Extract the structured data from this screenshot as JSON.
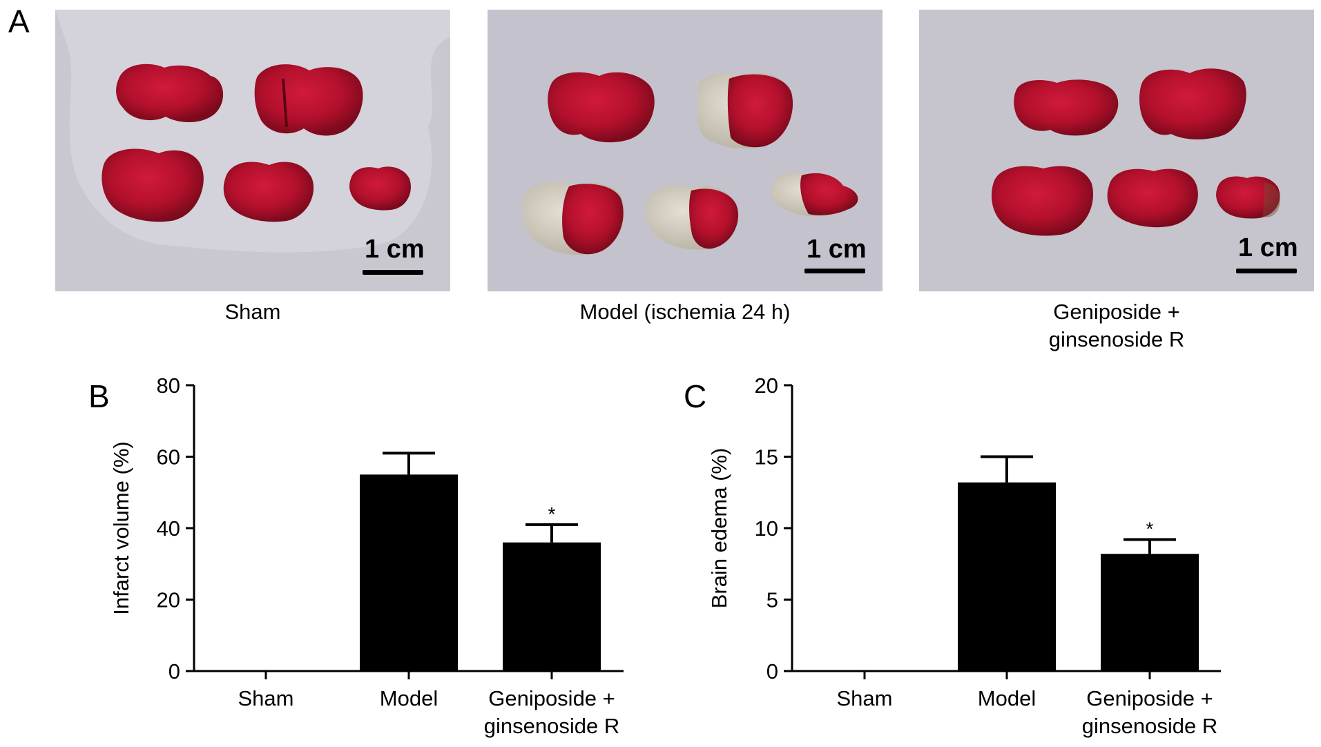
{
  "panel_a": {
    "letter": "A",
    "photos": [
      {
        "caption_lines": [
          "Sham"
        ],
        "scale_label": "1 cm"
      },
      {
        "caption_lines": [
          "Model (ischemia 24 h)"
        ],
        "scale_label": "1 cm"
      },
      {
        "caption_lines": [
          "Geniposide +",
          "ginsenoside R"
        ],
        "scale_label": "1 cm"
      }
    ]
  },
  "chart_data": [
    {
      "panel": "B",
      "type": "bar",
      "categories": [
        [
          "Sham"
        ],
        [
          "Model"
        ],
        [
          "Geniposide +",
          "ginsenoside R"
        ]
      ],
      "values": [
        0,
        55,
        36
      ],
      "error": [
        0,
        6,
        5
      ],
      "significance": [
        "",
        "",
        "*"
      ],
      "ylabel": "Infarct volume (%)",
      "ylim": [
        0,
        80
      ],
      "yticks": [
        0,
        20,
        40,
        60,
        80
      ],
      "bar_color": "#000000",
      "grid": false
    },
    {
      "panel": "C",
      "type": "bar",
      "categories": [
        [
          "Sham"
        ],
        [
          "Model"
        ],
        [
          "Geniposide +",
          "ginsenoside R"
        ]
      ],
      "values": [
        0,
        13.2,
        8.2
      ],
      "error": [
        0,
        1.8,
        1.0
      ],
      "significance": [
        "",
        "",
        "*"
      ],
      "ylabel": "Brain edema (%)",
      "ylim": [
        0,
        20
      ],
      "yticks": [
        0,
        5,
        10,
        15,
        20
      ],
      "bar_color": "#000000",
      "grid": false
    }
  ]
}
